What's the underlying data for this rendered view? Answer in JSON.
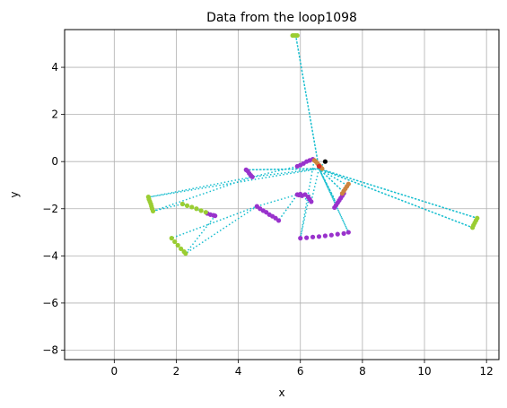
{
  "chart_data": {
    "type": "scatter",
    "title": "Data from the loop1098",
    "xlabel": "x",
    "ylabel": "y",
    "xlim": [
      -1.6,
      12.4
    ],
    "ylim": [
      -8.4,
      5.6
    ],
    "xticks": [
      0,
      2,
      4,
      6,
      8,
      10,
      12
    ],
    "yticks": [
      -8,
      -6,
      -4,
      -2,
      0,
      2,
      4
    ],
    "grid": true,
    "colors": {
      "path": "#17becf",
      "purple": "#9932cc",
      "olive": "#9acd32",
      "brown": "#cd853f",
      "red": "#d62728",
      "black": "#000000"
    },
    "path": [
      [
        6.8,
        0.0
      ],
      [
        6.6,
        -0.3
      ],
      [
        5.85,
        5.35
      ],
      [
        6.6,
        -0.3
      ],
      [
        4.25,
        -0.35
      ],
      [
        6.6,
        -0.3
      ],
      [
        4.45,
        -0.65
      ],
      [
        1.15,
        -1.5
      ],
      [
        6.6,
        -0.3
      ],
      [
        7.5,
        -1.0
      ],
      [
        6.6,
        -0.3
      ],
      [
        7.4,
        -1.3
      ],
      [
        6.6,
        -0.3
      ],
      [
        7.2,
        -1.9
      ],
      [
        6.6,
        -0.3
      ],
      [
        7.1,
        -1.6
      ],
      [
        6.6,
        -0.3
      ],
      [
        11.7,
        -2.4
      ],
      [
        6.6,
        -0.3
      ],
      [
        11.55,
        -2.8
      ],
      [
        6.6,
        -0.3
      ],
      [
        7.55,
        -3.0
      ],
      [
        6.6,
        -0.3
      ],
      [
        6.35,
        -1.7
      ],
      [
        5.9,
        -1.4
      ],
      [
        5.3,
        -2.5
      ],
      [
        5.9,
        -1.4
      ],
      [
        4.6,
        -1.9
      ],
      [
        1.85,
        -3.25
      ],
      [
        4.6,
        -1.9
      ],
      [
        2.3,
        -3.9
      ],
      [
        3.25,
        -2.3
      ],
      [
        2.2,
        -1.8
      ],
      [
        1.25,
        -2.1
      ],
      [
        4.45,
        -0.65
      ],
      [
        5.9,
        -0.2
      ],
      [
        6.45,
        0.1
      ],
      [
        6.0,
        -3.25
      ],
      [
        6.3,
        -1.4
      ]
    ],
    "series": [
      {
        "color": "purple",
        "x": [
          4.25,
          4.3,
          4.35,
          4.4,
          4.45
        ],
        "y": [
          -0.35,
          -0.4,
          -0.5,
          -0.58,
          -0.65
        ]
      },
      {
        "color": "purple",
        "x": [
          5.9,
          6.0,
          6.1,
          6.2,
          6.3,
          6.4
        ],
        "y": [
          -0.2,
          -0.15,
          -0.08,
          0.0,
          0.05,
          0.1
        ]
      },
      {
        "color": "purple",
        "x": [
          4.6,
          4.7,
          4.8,
          4.9,
          5.0,
          5.1,
          5.2,
          5.3
        ],
        "y": [
          -1.9,
          -2.0,
          -2.08,
          -2.15,
          -2.25,
          -2.32,
          -2.4,
          -2.5
        ]
      },
      {
        "color": "purple",
        "x": [
          5.9,
          5.95,
          6.0,
          6.05,
          6.15,
          6.25,
          6.3,
          6.35
        ],
        "y": [
          -1.4,
          -1.42,
          -1.38,
          -1.45,
          -1.4,
          -1.5,
          -1.6,
          -1.7
        ]
      },
      {
        "color": "purple",
        "x": [
          6.0,
          6.2,
          6.4,
          6.6,
          6.8,
          7.0,
          7.2,
          7.4,
          7.55
        ],
        "y": [
          -3.25,
          -3.23,
          -3.2,
          -3.18,
          -3.15,
          -3.12,
          -3.08,
          -3.05,
          -3.0
        ]
      },
      {
        "color": "purple",
        "x": [
          7.1,
          7.15,
          7.2,
          7.25,
          7.3,
          7.35,
          7.4
        ],
        "y": [
          -1.95,
          -1.85,
          -1.75,
          -1.65,
          -1.55,
          -1.45,
          -1.35
        ]
      },
      {
        "color": "purple",
        "x": [
          3.0,
          3.1,
          3.2,
          3.25
        ],
        "y": [
          -2.2,
          -2.25,
          -2.28,
          -2.3
        ]
      },
      {
        "color": "olive",
        "x": [
          1.1,
          1.12,
          1.15,
          1.18,
          1.2,
          1.22,
          1.25
        ],
        "y": [
          -1.5,
          -1.6,
          -1.7,
          -1.8,
          -1.9,
          -2.0,
          -2.1
        ]
      },
      {
        "color": "olive",
        "x": [
          2.2,
          2.35,
          2.5,
          2.65,
          2.8,
          2.95
        ],
        "y": [
          -1.8,
          -1.87,
          -1.93,
          -2.0,
          -2.08,
          -2.15
        ]
      },
      {
        "color": "olive",
        "x": [
          1.85,
          1.95,
          2.05,
          2.15,
          2.25,
          2.3
        ],
        "y": [
          -3.25,
          -3.4,
          -3.55,
          -3.7,
          -3.82,
          -3.9
        ]
      },
      {
        "color": "olive",
        "x": [
          11.55,
          11.58,
          11.62,
          11.66,
          11.7
        ],
        "y": [
          -2.8,
          -2.7,
          -2.6,
          -2.5,
          -2.4
        ]
      },
      {
        "color": "olive",
        "x": [
          5.75,
          5.8,
          5.85,
          5.9
        ],
        "y": [
          5.35,
          5.35,
          5.35,
          5.35
        ]
      },
      {
        "color": "brown",
        "x": [
          7.35,
          7.4,
          7.45,
          7.5,
          7.55
        ],
        "y": [
          -1.35,
          -1.25,
          -1.15,
          -1.05,
          -0.95
        ]
      },
      {
        "color": "brown",
        "x": [
          6.45,
          6.5,
          6.55,
          6.6,
          6.65,
          6.7
        ],
        "y": [
          0.05,
          0.0,
          -0.08,
          -0.15,
          -0.22,
          -0.3
        ]
      },
      {
        "color": "red",
        "x": [
          6.6
        ],
        "y": [
          -0.2
        ]
      },
      {
        "color": "black",
        "x": [
          6.8
        ],
        "y": [
          0.0
        ]
      }
    ]
  }
}
